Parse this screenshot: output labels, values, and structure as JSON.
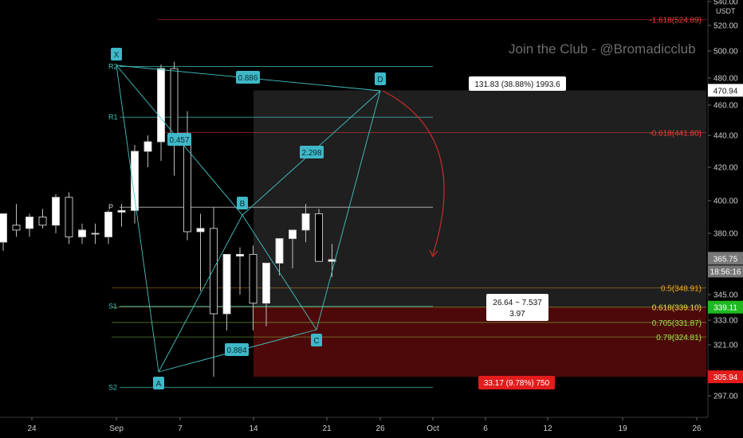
{
  "watermark": "Join the Club - @Bromadicclub",
  "chart_data": {
    "type": "candlestick",
    "y_axis": {
      "currency": "USDT",
      "ticks": [
        540,
        520,
        500,
        480,
        460,
        440,
        420,
        400,
        380,
        345,
        333,
        321,
        297
      ],
      "tick_labels": [
        "540.00",
        "520.00",
        "500.00",
        "480.00",
        "460.00",
        "440.00",
        "420.00",
        "400.00",
        "380.00",
        "345.00",
        "333.00",
        "321.00",
        "297.00"
      ],
      "range": [
        285,
        545
      ]
    },
    "x_axis": {
      "ticks": [
        "24",
        "Sep",
        "7",
        "14",
        "21",
        "26",
        "Oct",
        "6",
        "12",
        "19",
        "26"
      ]
    },
    "price_tags": {
      "top": "470.94",
      "current": "365.75",
      "countdown": "18:56:16",
      "level": "339.11",
      "bottom": "305.94"
    },
    "candles": [
      {
        "o": 375,
        "h": 392,
        "l": 370,
        "c": 392
      },
      {
        "o": 385,
        "h": 398,
        "l": 378,
        "c": 382
      },
      {
        "o": 383,
        "h": 392,
        "l": 378,
        "c": 390
      },
      {
        "o": 390,
        "h": 395,
        "l": 383,
        "c": 385
      },
      {
        "o": 385,
        "h": 404,
        "l": 380,
        "c": 402
      },
      {
        "o": 402,
        "h": 405,
        "l": 374,
        "c": 378
      },
      {
        "o": 378,
        "h": 386,
        "l": 374,
        "c": 382
      },
      {
        "o": 380,
        "h": 386,
        "l": 374,
        "c": 380
      },
      {
        "o": 378,
        "h": 394,
        "l": 374,
        "c": 393
      },
      {
        "o": 393,
        "h": 398,
        "l": 384,
        "c": 394
      },
      {
        "o": 394,
        "h": 434,
        "l": 386,
        "c": 430
      },
      {
        "o": 430,
        "h": 440,
        "l": 420,
        "c": 436
      },
      {
        "o": 436,
        "h": 490,
        "l": 424,
        "c": 487
      },
      {
        "o": 487,
        "h": 492,
        "l": 415,
        "c": 438
      },
      {
        "o": 438,
        "h": 456,
        "l": 376,
        "c": 381
      },
      {
        "o": 381,
        "h": 392,
        "l": 347,
        "c": 383
      },
      {
        "o": 383,
        "h": 396,
        "l": 306,
        "c": 336
      },
      {
        "o": 336,
        "h": 368,
        "l": 328,
        "c": 368
      },
      {
        "o": 367,
        "h": 372,
        "l": 345,
        "c": 368
      },
      {
        "o": 368,
        "h": 373,
        "l": 328,
        "c": 341
      },
      {
        "o": 341,
        "h": 363,
        "l": 330,
        "c": 363
      },
      {
        "o": 363,
        "h": 377,
        "l": 356,
        "c": 377
      },
      {
        "o": 377,
        "h": 382,
        "l": 360,
        "c": 382
      },
      {
        "o": 382,
        "h": 398,
        "l": 375,
        "c": 392
      },
      {
        "o": 392,
        "h": 395,
        "l": 364,
        "c": 364
      },
      {
        "o": 364,
        "h": 374,
        "l": 355,
        "c": 365
      }
    ],
    "fib_levels": [
      {
        "label": "-1.618(524.89)",
        "value": 524.89,
        "color": "#ff3b3b"
      },
      {
        "label": "-0.618(441.80)",
        "value": 441.8,
        "color": "#ff3b3b"
      },
      {
        "label": "0.5(348.91)",
        "value": 348.91,
        "color": "#f5a623"
      },
      {
        "label": "0.618(339.10)",
        "value": 339.1,
        "color": "#e8e24a"
      },
      {
        "label": "0.705(331.87)",
        "value": 331.87,
        "color": "#9be84a"
      },
      {
        "label": "0.79(324.81)",
        "value": 324.81,
        "color": "#9be84a"
      }
    ],
    "pivots": [
      {
        "label": "R2",
        "value": 488.5
      },
      {
        "label": "R1",
        "value": 452
      },
      {
        "label": "P",
        "value": 396
      },
      {
        "label": "S1",
        "value": 339.5
      },
      {
        "label": "S2",
        "value": 301
      }
    ],
    "harmonic": {
      "points": [
        "X",
        "A",
        "B",
        "C",
        "D"
      ],
      "ratios": [
        "0.886",
        "0.457",
        "2.298",
        "0.884"
      ]
    },
    "position": {
      "target_label": "131.83 (38.88%) 1993.6",
      "entry_label_1": "26.64 ~ 7.537",
      "entry_label_2": "3.97",
      "stop_label": "33.17 (9.78%) 750"
    }
  }
}
